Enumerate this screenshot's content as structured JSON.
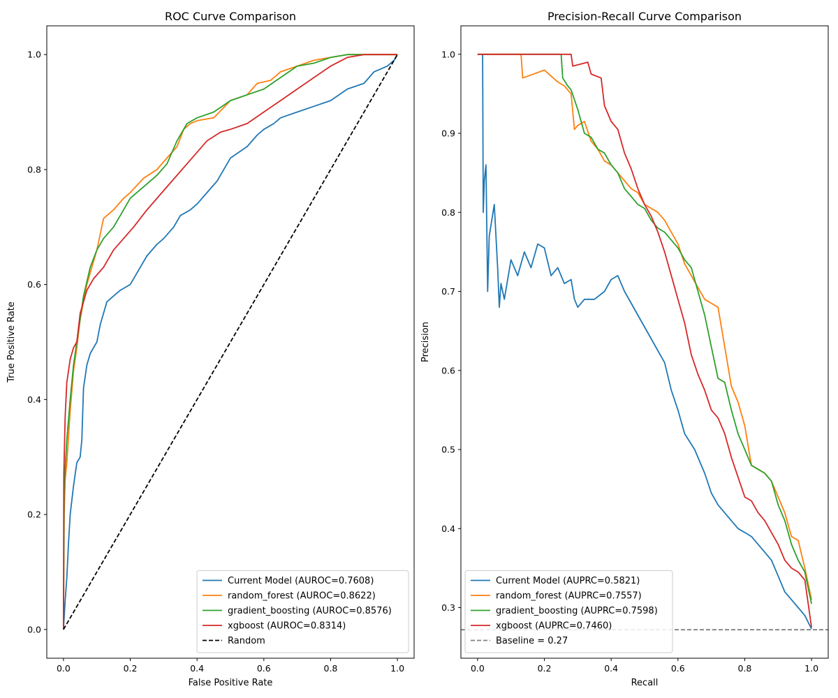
{
  "chart_data": [
    {
      "type": "line",
      "title": "ROC Curve Comparison",
      "xlabel": "False Positive Rate",
      "ylabel": "True Positive Rate",
      "xlim": [
        -0.05,
        1.05
      ],
      "ylim": [
        -0.05,
        1.05
      ],
      "xticks": [
        "0.0",
        "0.2",
        "0.4",
        "0.6",
        "0.8",
        "1.0"
      ],
      "yticks": [
        "0.0",
        "0.2",
        "0.4",
        "0.6",
        "0.8",
        "1.0"
      ],
      "grid": false,
      "legend_position": "lower-right",
      "series": [
        {
          "name": "Current Model (AUROC=0.7608)",
          "color": "#1f77b4",
          "dash": false,
          "x": [
            0,
            0.005,
            0.01,
            0.015,
            0.02,
            0.03,
            0.04,
            0.05,
            0.055,
            0.06,
            0.065,
            0.07,
            0.075,
            0.08,
            0.09,
            0.1,
            0.11,
            0.12,
            0.13,
            0.14,
            0.15,
            0.17,
            0.2,
            0.23,
            0.25,
            0.28,
            0.3,
            0.33,
            0.35,
            0.38,
            0.4,
            0.43,
            0.46,
            0.48,
            0.5,
            0.55,
            0.58,
            0.6,
            0.63,
            0.65,
            0.7,
            0.75,
            0.8,
            0.85,
            0.9,
            0.93,
            0.95,
            0.97,
            0.99,
            1.0
          ],
          "y": [
            0,
            0.05,
            0.09,
            0.15,
            0.2,
            0.25,
            0.29,
            0.3,
            0.33,
            0.42,
            0.44,
            0.46,
            0.47,
            0.48,
            0.49,
            0.5,
            0.53,
            0.55,
            0.57,
            0.575,
            0.58,
            0.59,
            0.6,
            0.63,
            0.65,
            0.67,
            0.68,
            0.7,
            0.72,
            0.73,
            0.74,
            0.76,
            0.78,
            0.8,
            0.82,
            0.84,
            0.86,
            0.87,
            0.88,
            0.89,
            0.9,
            0.91,
            0.92,
            0.94,
            0.95,
            0.97,
            0.975,
            0.98,
            0.99,
            1.0
          ]
        },
        {
          "name": "random_forest (AUROC=0.8622)",
          "color": "#ff7f0e",
          "dash": false,
          "x": [
            0,
            0.002,
            0.005,
            0.01,
            0.02,
            0.03,
            0.04,
            0.05,
            0.07,
            0.09,
            0.1,
            0.12,
            0.15,
            0.18,
            0.2,
            0.24,
            0.28,
            0.31,
            0.34,
            0.36,
            0.38,
            0.4,
            0.45,
            0.5,
            0.55,
            0.58,
            0.62,
            0.65,
            0.7,
            0.75,
            0.8,
            0.85,
            0.9,
            1.0
          ],
          "y": [
            0,
            0.2,
            0.26,
            0.29,
            0.38,
            0.45,
            0.49,
            0.54,
            0.6,
            0.64,
            0.66,
            0.715,
            0.73,
            0.75,
            0.76,
            0.785,
            0.8,
            0.82,
            0.84,
            0.87,
            0.88,
            0.885,
            0.89,
            0.92,
            0.93,
            0.95,
            0.955,
            0.97,
            0.98,
            0.99,
            0.995,
            1.0,
            1.0,
            1.0
          ]
        },
        {
          "name": "gradient_boosting (AUROC=0.8576)",
          "color": "#2ca02c",
          "dash": false,
          "x": [
            0,
            0.002,
            0.005,
            0.01,
            0.02,
            0.03,
            0.04,
            0.06,
            0.08,
            0.1,
            0.12,
            0.15,
            0.18,
            0.2,
            0.24,
            0.28,
            0.31,
            0.34,
            0.37,
            0.4,
            0.45,
            0.5,
            0.55,
            0.6,
            0.65,
            0.7,
            0.75,
            0.8,
            0.85,
            1.0
          ],
          "y": [
            0,
            0.24,
            0.28,
            0.33,
            0.4,
            0.46,
            0.5,
            0.58,
            0.63,
            0.66,
            0.68,
            0.7,
            0.73,
            0.75,
            0.77,
            0.79,
            0.81,
            0.85,
            0.88,
            0.89,
            0.9,
            0.92,
            0.93,
            0.94,
            0.96,
            0.98,
            0.985,
            0.995,
            1.0,
            1.0
          ]
        },
        {
          "name": "xgboost (AUROC=0.8314)",
          "color": "#d62728",
          "dash": false,
          "x": [
            0,
            0.001,
            0.005,
            0.01,
            0.015,
            0.02,
            0.03,
            0.04,
            0.05,
            0.07,
            0.09,
            0.12,
            0.15,
            0.18,
            0.21,
            0.25,
            0.28,
            0.31,
            0.34,
            0.37,
            0.4,
            0.43,
            0.47,
            0.5,
            0.55,
            0.6,
            0.65,
            0.7,
            0.75,
            0.8,
            0.85,
            0.9,
            1.0
          ],
          "y": [
            0,
            0.27,
            0.37,
            0.43,
            0.45,
            0.47,
            0.49,
            0.5,
            0.55,
            0.59,
            0.61,
            0.63,
            0.66,
            0.68,
            0.7,
            0.73,
            0.75,
            0.77,
            0.79,
            0.81,
            0.83,
            0.85,
            0.865,
            0.87,
            0.88,
            0.9,
            0.92,
            0.94,
            0.96,
            0.98,
            0.995,
            1.0,
            1.0
          ]
        },
        {
          "name": "Random",
          "color": "#000000",
          "dash": true,
          "x": [
            0,
            1
          ],
          "y": [
            0,
            1
          ]
        }
      ]
    },
    {
      "type": "line",
      "title": "Precision-Recall Curve Comparison",
      "xlabel": "Recall",
      "ylabel": "Precision",
      "xlim": [
        -0.05,
        1.05
      ],
      "ylim": [
        0.236,
        1.036
      ],
      "xticks": [
        "0.0",
        "0.2",
        "0.4",
        "0.6",
        "0.8",
        "1.0"
      ],
      "yticks": [
        "0.3",
        "0.4",
        "0.5",
        "0.6",
        "0.7",
        "0.8",
        "0.9",
        "1.0"
      ],
      "grid": false,
      "legend_position": "lower-left",
      "series": [
        {
          "name": "Current Model (AUPRC=0.5821)",
          "color": "#1f77b4",
          "dash": false,
          "x": [
            0.015,
            0.017,
            0.02,
            0.025,
            0.03,
            0.035,
            0.05,
            0.06,
            0.065,
            0.07,
            0.08,
            0.1,
            0.12,
            0.14,
            0.16,
            0.18,
            0.2,
            0.22,
            0.24,
            0.26,
            0.28,
            0.29,
            0.3,
            0.32,
            0.35,
            0.38,
            0.4,
            0.42,
            0.44,
            0.46,
            0.48,
            0.5,
            0.52,
            0.54,
            0.56,
            0.58,
            0.6,
            0.62,
            0.65,
            0.68,
            0.7,
            0.72,
            0.75,
            0.78,
            0.8,
            0.82,
            0.85,
            0.88,
            0.9,
            0.92,
            0.94,
            0.96,
            0.98,
            1.0
          ],
          "y": [
            1.0,
            0.8,
            0.84,
            0.86,
            0.7,
            0.77,
            0.81,
            0.73,
            0.68,
            0.71,
            0.69,
            0.74,
            0.72,
            0.75,
            0.73,
            0.76,
            0.755,
            0.72,
            0.73,
            0.71,
            0.715,
            0.69,
            0.68,
            0.69,
            0.69,
            0.7,
            0.715,
            0.72,
            0.7,
            0.685,
            0.67,
            0.655,
            0.64,
            0.625,
            0.61,
            0.575,
            0.55,
            0.52,
            0.5,
            0.47,
            0.445,
            0.43,
            0.415,
            0.4,
            0.395,
            0.39,
            0.375,
            0.36,
            0.34,
            0.32,
            0.31,
            0.3,
            0.29,
            0.273
          ]
        },
        {
          "name": "random_forest (AUPRC=0.7557)",
          "color": "#ff7f0e",
          "dash": false,
          "x": [
            0,
            0.13,
            0.135,
            0.2,
            0.24,
            0.26,
            0.28,
            0.29,
            0.3,
            0.32,
            0.34,
            0.36,
            0.38,
            0.4,
            0.42,
            0.44,
            0.46,
            0.48,
            0.5,
            0.52,
            0.54,
            0.56,
            0.58,
            0.6,
            0.62,
            0.64,
            0.66,
            0.68,
            0.7,
            0.72,
            0.74,
            0.76,
            0.78,
            0.8,
            0.82,
            0.84,
            0.86,
            0.88,
            0.9,
            0.92,
            0.94,
            0.96,
            0.98,
            1.0
          ],
          "y": [
            1.0,
            1.0,
            0.97,
            0.98,
            0.965,
            0.96,
            0.95,
            0.905,
            0.91,
            0.915,
            0.89,
            0.88,
            0.865,
            0.86,
            0.85,
            0.84,
            0.83,
            0.825,
            0.81,
            0.805,
            0.8,
            0.79,
            0.775,
            0.76,
            0.735,
            0.72,
            0.705,
            0.69,
            0.685,
            0.68,
            0.63,
            0.58,
            0.56,
            0.53,
            0.48,
            0.475,
            0.47,
            0.46,
            0.44,
            0.42,
            0.39,
            0.385,
            0.35,
            0.31
          ]
        },
        {
          "name": "gradient_boosting (AUPRC=0.7598)",
          "color": "#2ca02c",
          "dash": false,
          "x": [
            0,
            0.25,
            0.255,
            0.27,
            0.28,
            0.3,
            0.32,
            0.34,
            0.36,
            0.38,
            0.4,
            0.42,
            0.44,
            0.46,
            0.48,
            0.5,
            0.52,
            0.54,
            0.56,
            0.58,
            0.6,
            0.62,
            0.64,
            0.66,
            0.68,
            0.7,
            0.72,
            0.74,
            0.76,
            0.78,
            0.8,
            0.82,
            0.84,
            0.86,
            0.88,
            0.9,
            0.92,
            0.94,
            0.96,
            0.98,
            1.0
          ],
          "y": [
            1.0,
            1.0,
            0.97,
            0.96,
            0.955,
            0.93,
            0.9,
            0.895,
            0.88,
            0.875,
            0.86,
            0.85,
            0.83,
            0.82,
            0.81,
            0.805,
            0.79,
            0.78,
            0.775,
            0.765,
            0.755,
            0.74,
            0.73,
            0.7,
            0.67,
            0.63,
            0.59,
            0.585,
            0.55,
            0.52,
            0.5,
            0.48,
            0.475,
            0.47,
            0.46,
            0.43,
            0.41,
            0.38,
            0.36,
            0.345,
            0.305
          ]
        },
        {
          "name": "xgboost (AUPRC=0.7460)",
          "color": "#d62728",
          "dash": false,
          "x": [
            0,
            0.28,
            0.285,
            0.33,
            0.34,
            0.37,
            0.38,
            0.4,
            0.42,
            0.44,
            0.46,
            0.48,
            0.5,
            0.52,
            0.54,
            0.56,
            0.58,
            0.6,
            0.62,
            0.64,
            0.66,
            0.68,
            0.7,
            0.72,
            0.74,
            0.76,
            0.78,
            0.8,
            0.82,
            0.84,
            0.86,
            0.88,
            0.9,
            0.92,
            0.94,
            0.96,
            0.98,
            1.0
          ],
          "y": [
            1.0,
            1.0,
            0.985,
            0.99,
            0.975,
            0.97,
            0.935,
            0.915,
            0.905,
            0.875,
            0.855,
            0.83,
            0.81,
            0.795,
            0.775,
            0.75,
            0.72,
            0.69,
            0.66,
            0.62,
            0.595,
            0.575,
            0.55,
            0.54,
            0.52,
            0.49,
            0.465,
            0.44,
            0.435,
            0.42,
            0.41,
            0.395,
            0.38,
            0.36,
            0.35,
            0.345,
            0.335,
            0.275
          ]
        },
        {
          "name": "Baseline = 0.27",
          "color": "#808080",
          "dash": true,
          "x": [
            -0.05,
            1.05
          ],
          "y": [
            0.272,
            0.272
          ]
        }
      ]
    }
  ]
}
